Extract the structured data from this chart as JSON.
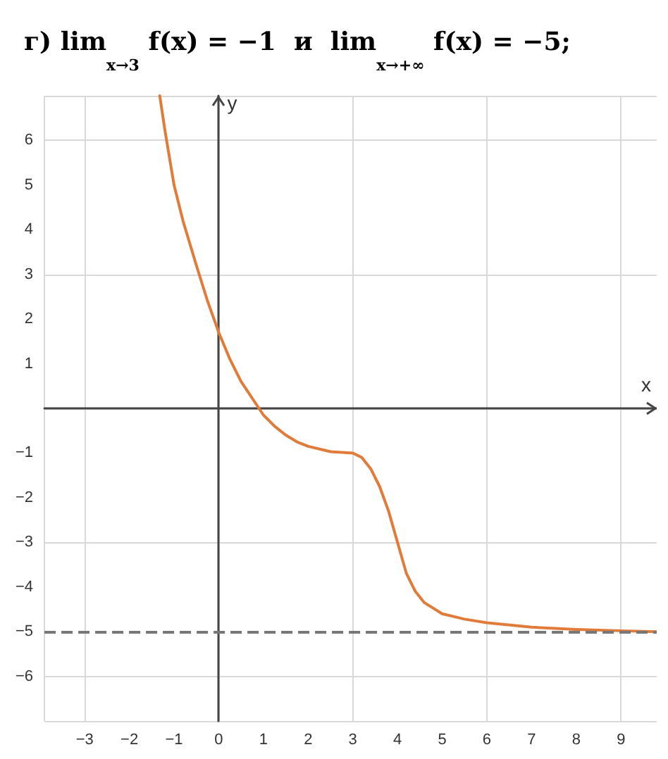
{
  "chart_data": {
    "type": "line",
    "title": "г) lim$_{x→3}$ f(x) = −1  и  lim$_{x→+∞}$ f(x) = −5;",
    "xlabel": "x",
    "ylabel": "y",
    "x": [
      -1.32,
      -1.2,
      -1,
      -0.8,
      -0.5,
      -0.25,
      0,
      0.25,
      0.5,
      0.7,
      0.9,
      1,
      1.25,
      1.5,
      1.75,
      2,
      2.5,
      3,
      3.2,
      3.4,
      3.6,
      3.8,
      4,
      4.2,
      4.4,
      4.6,
      5,
      5.5,
      6,
      7,
      8,
      9,
      9.8
    ],
    "series": [
      {
        "color": "#e07b39",
        "values": [
          7,
          6.2,
          5,
          4.2,
          3.2,
          2.4,
          1.7,
          1.1,
          0.6,
          0.3,
          0,
          -0.15,
          -0.4,
          -0.6,
          -0.75,
          -0.85,
          -0.97,
          -1,
          -1.1,
          -1.35,
          -1.75,
          -2.3,
          -3,
          -3.7,
          -4.1,
          -4.35,
          -4.6,
          -4.72,
          -4.8,
          -4.9,
          -4.95,
          -4.98,
          -5
        ]
      }
    ],
    "xlim": [
      -3.9,
      9.8
    ],
    "ylim": [
      -7,
      7
    ],
    "xticks": [
      -3,
      -2,
      -1,
      0,
      1,
      2,
      3,
      4,
      5,
      6,
      7,
      8,
      9
    ],
    "yticks": [
      -6,
      -5,
      -4,
      -3,
      -2,
      -1,
      1,
      2,
      3,
      4,
      5,
      6
    ],
    "ref_lines": [
      {
        "axis": "y",
        "value": -5,
        "color": "#777777",
        "line_style": "dashed"
      }
    ],
    "grid": true,
    "marker": "none",
    "line_style": "solid"
  }
}
